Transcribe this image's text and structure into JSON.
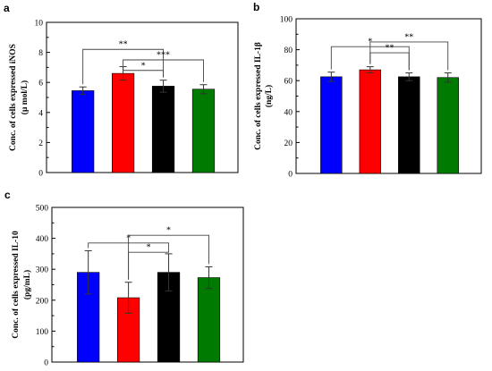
{
  "chart_data": [
    {
      "type": "bar",
      "panel_label": "a",
      "ylabel": "Conc. of cells expressed iNOS",
      "ylabel_unit": "(μ mol/L)",
      "ylim": [
        0,
        10
      ],
      "yticks": [
        "0",
        "2",
        "4",
        "6",
        "8",
        "10"
      ],
      "bars": [
        {
          "value": 5.45,
          "error": 0.25,
          "color": "#0000ff"
        },
        {
          "value": 6.6,
          "error": 0.45,
          "color": "#ff0000"
        },
        {
          "value": 5.75,
          "error": 0.4,
          "color": "#000000"
        },
        {
          "value": 5.55,
          "error": 0.3,
          "color": "#007a00"
        }
      ],
      "significance": [
        {
          "from": 0,
          "to": 2,
          "y": 8.2,
          "label": "**"
        },
        {
          "from": 1,
          "to": 3,
          "y": 7.5,
          "label": "***"
        },
        {
          "from": 1,
          "to": 2,
          "y": 6.8,
          "label": "*"
        }
      ]
    },
    {
      "type": "bar",
      "panel_label": "b",
      "ylabel": "Conc. of cells expressed IL-1β",
      "ylabel_unit": "(ng/L)",
      "ylim": [
        0,
        100
      ],
      "yticks": [
        "0",
        "20",
        "40",
        "60",
        "80",
        "100"
      ],
      "bars": [
        {
          "value": 62.5,
          "error": 3,
          "color": "#0000ff"
        },
        {
          "value": 67,
          "error": 2,
          "color": "#ff0000"
        },
        {
          "value": 62.5,
          "error": 2.5,
          "color": "#000000"
        },
        {
          "value": 62,
          "error": 3,
          "color": "#007a00"
        }
      ],
      "significance": [
        {
          "from": 0,
          "to": 2,
          "y": 82,
          "label": "*"
        },
        {
          "from": 1,
          "to": 3,
          "y": 85,
          "label": "**"
        },
        {
          "from": 1,
          "to": 2,
          "y": 78,
          "label": "**"
        }
      ]
    },
    {
      "type": "bar",
      "panel_label": "c",
      "ylabel": "Conc. of cells expressed IL-10",
      "ylabel_unit": "(pg/mL)",
      "ylim": [
        0,
        500
      ],
      "yticks": [
        "0",
        "100",
        "200",
        "300",
        "400",
        "500"
      ],
      "bars": [
        {
          "value": 290,
          "error": 70,
          "color": "#0000ff"
        },
        {
          "value": 208,
          "error": 50,
          "color": "#ff0000"
        },
        {
          "value": 290,
          "error": 60,
          "color": "#000000"
        },
        {
          "value": 273,
          "error": 35,
          "color": "#007a00"
        }
      ],
      "significance": [
        {
          "from": 0,
          "to": 2,
          "y": 385,
          "label": "*"
        },
        {
          "from": 1,
          "to": 3,
          "y": 410,
          "label": "*"
        },
        {
          "from": 1,
          "to": 2,
          "y": 355,
          "label": "*"
        }
      ]
    }
  ]
}
